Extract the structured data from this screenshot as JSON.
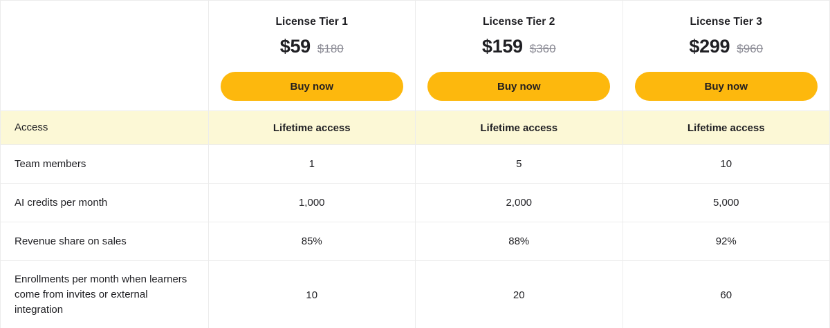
{
  "table": {
    "tiers": [
      {
        "name": "License Tier 1",
        "price": "$59",
        "old_price": "$180",
        "buy_label": "Buy now"
      },
      {
        "name": "License Tier 2",
        "price": "$159",
        "old_price": "$360",
        "buy_label": "Buy now"
      },
      {
        "name": "License Tier 3",
        "price": "$299",
        "old_price": "$960",
        "buy_label": "Buy now"
      }
    ],
    "rows": [
      {
        "label": "Access",
        "values": [
          "Lifetime access",
          "Lifetime access",
          "Lifetime access"
        ]
      },
      {
        "label": "Team members",
        "values": [
          "1",
          "5",
          "10"
        ]
      },
      {
        "label": "AI credits per month",
        "values": [
          "1,000",
          "2,000",
          "5,000"
        ]
      },
      {
        "label": "Revenue share on sales",
        "values": [
          "85%",
          "88%",
          "92%"
        ]
      },
      {
        "label": "Enrollments per month when learners come from invites or external integration",
        "values": [
          "10",
          "20",
          "60"
        ]
      }
    ]
  },
  "colors": {
    "button_bg": "#FDB80D",
    "button_text": "#231F20",
    "highlight_row_bg": "#FCF8D6",
    "border": "#ECECEC",
    "text": "#1F1F23",
    "muted_text": "#8A8A94"
  }
}
